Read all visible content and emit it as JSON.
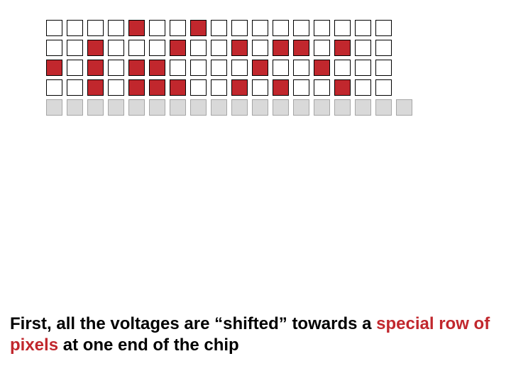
{
  "grid": {
    "type": "infographic",
    "rows": 5,
    "cols_rows_0_3": 17,
    "cols_row_4": 18,
    "cell_size": 23,
    "cell_gap": 6,
    "border_width": 1,
    "colors": {
      "empty_fill": "#ffffff",
      "empty_border": "#000000",
      "filled_fill": "#c1272d",
      "filled_border": "#000000",
      "special_fill": "#d9d9d9",
      "special_border": "#a6a6a6"
    },
    "cells": [
      [
        "e",
        "e",
        "e",
        "e",
        "f",
        "e",
        "e",
        "f",
        "e",
        "e",
        "e",
        "e",
        "e",
        "e",
        "e",
        "e",
        "e"
      ],
      [
        "e",
        "e",
        "f",
        "e",
        "e",
        "e",
        "f",
        "e",
        "e",
        "f",
        "e",
        "f",
        "f",
        "e",
        "f",
        "e",
        "e"
      ],
      [
        "f",
        "e",
        "f",
        "e",
        "f",
        "f",
        "e",
        "e",
        "e",
        "e",
        "f",
        "e",
        "e",
        "f",
        "e",
        "e",
        "e"
      ],
      [
        "e",
        "e",
        "f",
        "e",
        "f",
        "f",
        "f",
        "e",
        "e",
        "f",
        "e",
        "f",
        "e",
        "e",
        "f",
        "e",
        "e"
      ],
      [
        "s",
        "s",
        "s",
        "s",
        "s",
        "s",
        "s",
        "s",
        "s",
        "s",
        "s",
        "s",
        "s",
        "s",
        "s",
        "s",
        "s",
        "s"
      ]
    ]
  },
  "caption": {
    "fragments": [
      {
        "text": "First, all the voltages are “shifted” towards a ",
        "color": "#000000"
      },
      {
        "text": "special row of pixels",
        "color": "#c1272d"
      },
      {
        "text": " at one end of the chip",
        "color": "#000000"
      }
    ],
    "font_size": 24,
    "font_weight": "bold"
  }
}
